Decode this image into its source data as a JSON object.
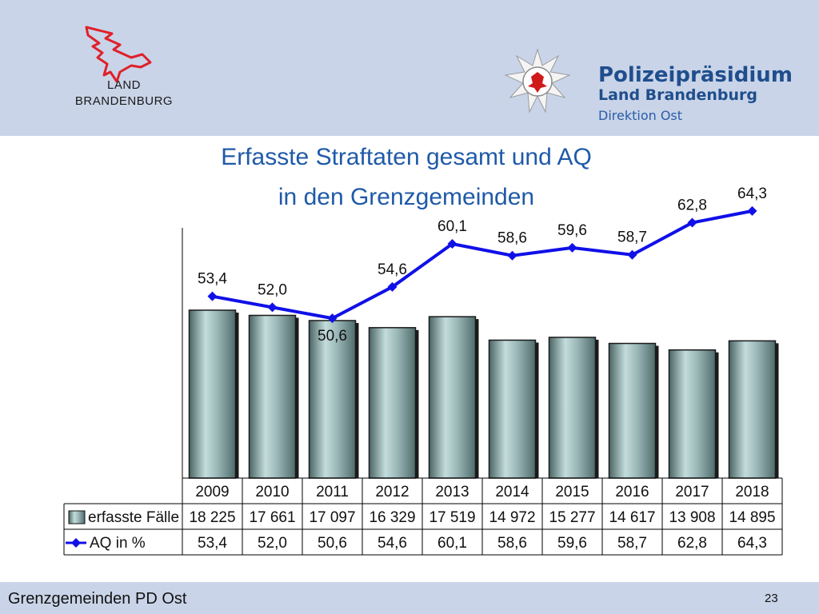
{
  "header": {
    "land_line1": "LAND",
    "land_line2": "BRANDENBURG",
    "police_line1": "Polizeipräsidium",
    "police_line2": "Land Brandenburg",
    "police_line3": "Direktion Ost"
  },
  "chart_data": {
    "type": "bar",
    "title_line1": "Erfasste Straftaten gesamt und AQ",
    "title_line2": "in den Grenzgemeinden",
    "categories": [
      "2009",
      "2010",
      "2011",
      "2012",
      "2013",
      "2014",
      "2015",
      "2016",
      "2017",
      "2018"
    ],
    "series": [
      {
        "name": "erfasste Fälle",
        "type": "bar",
        "values": [
          18225,
          17661,
          17097,
          16329,
          17519,
          14972,
          15277,
          14617,
          13908,
          14895
        ],
        "labels": [
          "18 225",
          "17 661",
          "17 097",
          "16 329",
          "17 519",
          "14 972",
          "15 277",
          "14 617",
          "13 908",
          "14 895"
        ],
        "color": "#6e8f8f"
      },
      {
        "name": "AQ in %",
        "type": "line",
        "values": [
          53.4,
          52.0,
          50.6,
          54.6,
          60.1,
          58.6,
          59.6,
          58.7,
          62.8,
          64.3
        ],
        "labels": [
          "53,4",
          "52,0",
          "50,6",
          "54,6",
          "60,1",
          "58,6",
          "59,6",
          "58,7",
          "62,8",
          "64,3"
        ],
        "color": "#1010e8"
      }
    ],
    "legend": "data-table"
  },
  "footer": {
    "text": "Grenzgemeinden PD Ost",
    "page": "23"
  }
}
